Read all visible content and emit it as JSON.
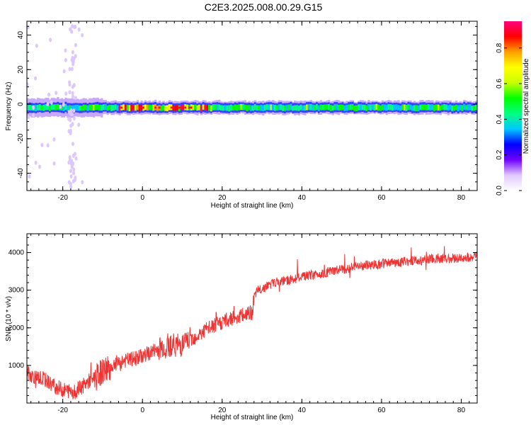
{
  "title": "C2E3.2025.008.00.29.G15",
  "chart_data": [
    {
      "type": "heatmap",
      "xlabel": "Height of straight line (km)",
      "ylabel": "Frequency (Hz)",
      "xlim": [
        -29,
        84
      ],
      "ylim": [
        -50,
        48
      ],
      "xticks": [
        -20,
        0,
        20,
        40,
        60,
        80
      ],
      "yticks": [
        -40,
        -20,
        0,
        20,
        40
      ],
      "band": {
        "center_hz": -2,
        "core_halfwidth_hz": 1.5,
        "outer_halfwidth_hz": 3.5,
        "max_amplitude_x_range": [
          -6,
          16
        ],
        "scatter_x": -17.5
      },
      "colorbar": {
        "label": "Normalized spectral amplitude",
        "range": [
          0,
          0.95
        ],
        "ticks": [
          "0.0",
          "0.2",
          "0.4",
          "0.6",
          "0.8"
        ],
        "colormap": [
          "#ffffff",
          "#e0c8ff",
          "#7000ff",
          "#0000ff",
          "#00c8ff",
          "#00ff80",
          "#00ff00",
          "#c8ff00",
          "#ffff00",
          "#ffa000",
          "#ff0000",
          "#ff0080"
        ]
      }
    },
    {
      "type": "line",
      "xlabel": "Height of straight line (km)",
      "ylabel": "SNR (10 * v/v)",
      "xlim": [
        -29,
        84
      ],
      "ylim": [
        0,
        4500
      ],
      "xticks": [
        -20,
        0,
        20,
        40,
        60,
        80
      ],
      "yticks": [
        1000,
        2000,
        3000,
        4000
      ],
      "series": [
        {
          "color": "#ee3333",
          "x": [
            -29,
            -27,
            -25,
            -22,
            -20,
            -17,
            -15,
            -12,
            -9,
            -8,
            -6,
            -3,
            0,
            3,
            5,
            7,
            10,
            12,
            14,
            16,
            18,
            20,
            22,
            24,
            26,
            27.5,
            28,
            29,
            31,
            33,
            36,
            40,
            45,
            50,
            55,
            60,
            65,
            70,
            75,
            80,
            84
          ],
          "y": [
            800,
            700,
            650,
            450,
            350,
            300,
            450,
            700,
            900,
            950,
            1100,
            1150,
            1250,
            1400,
            1500,
            1550,
            1550,
            1700,
            1800,
            1950,
            2050,
            2150,
            2250,
            2300,
            2350,
            2400,
            2800,
            3000,
            3100,
            3200,
            3250,
            3350,
            3450,
            3550,
            3650,
            3700,
            3750,
            3800,
            3850,
            3850,
            3900
          ]
        }
      ]
    }
  ]
}
